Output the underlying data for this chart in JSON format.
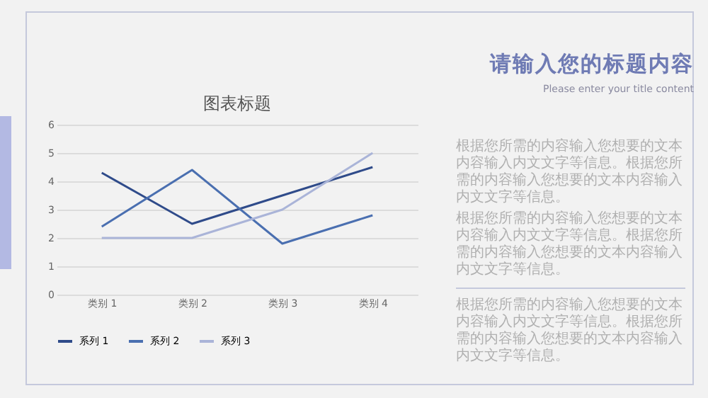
{
  "chart_data": {
    "type": "line",
    "title": "图表标题",
    "categories": [
      "类别 1",
      "类别 2",
      "类别 3",
      "类别 4"
    ],
    "series": [
      {
        "name": "系列 1",
        "color": "#2f4b8a",
        "values": [
          4.3,
          2.5,
          3.5,
          4.5
        ]
      },
      {
        "name": "系列 2",
        "color": "#4a6fb0",
        "values": [
          2.4,
          4.4,
          1.8,
          2.8
        ]
      },
      {
        "name": "系列 3",
        "color": "#aab4d8",
        "values": [
          2,
          2,
          3,
          5
        ]
      }
    ],
    "ylim": [
      0,
      6
    ],
    "yticks": [
      0,
      1,
      2,
      3,
      4,
      5,
      6
    ],
    "grid": "y",
    "legend": "bottom",
    "line_style": "solid",
    "annotations": [
      "请输入您的标题内容",
      "Please enter your title content",
      "根据您所需的内容输入您想要的文本内容输入内文文字等信息。根据您所需的内容输入您想要的文本内容输入内文文字等信息。",
      "根据您所需的内容输入您想要的文本内容输入内文文字等信息。根据您所需的内容输入您想要的文本内容输入内文文字等信息。",
      "根据您所需的内容输入您想要的文本内容输入内文文字等信息。根据您所需的内容输入您想要的文本内容输入内文文字等信息。"
    ]
  }
}
